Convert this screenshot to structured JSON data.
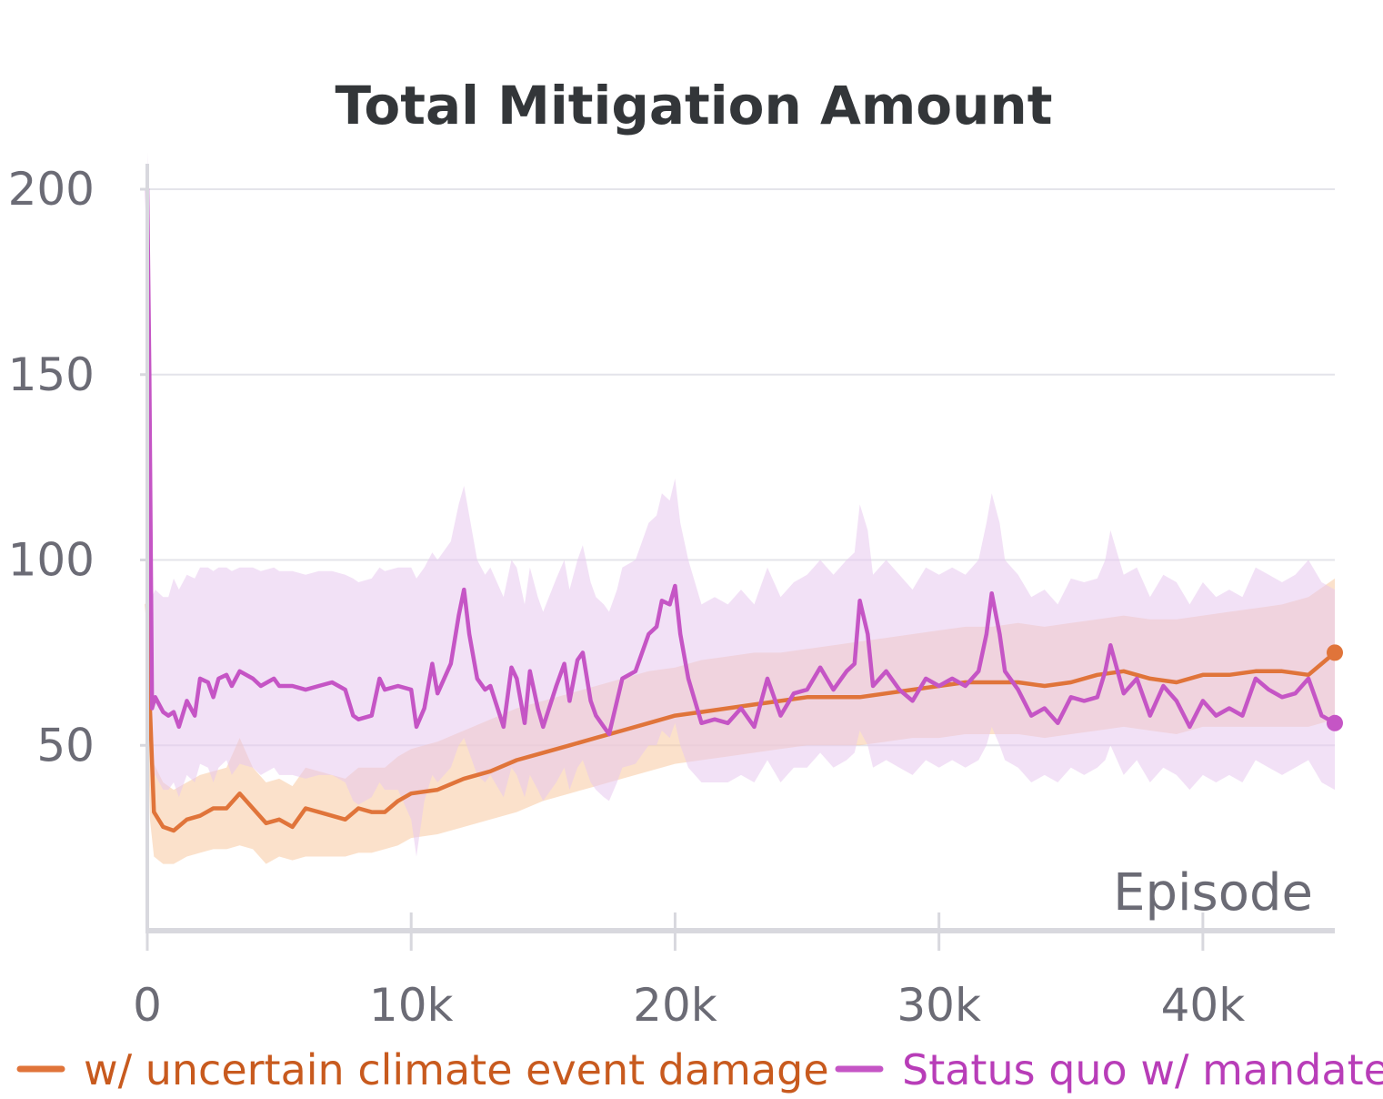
{
  "chart_data": {
    "type": "line",
    "title": "Total Mitigation Amount",
    "xlabel": "Episode",
    "ylabel": "",
    "xlim": [
      0,
      45000
    ],
    "ylim": [
      0,
      200
    ],
    "x_ticks": [
      0,
      10000,
      20000,
      30000,
      40000
    ],
    "x_tick_labels": [
      "0",
      "10k",
      "20k",
      "30k",
      "40k"
    ],
    "y_ticks": [
      50,
      100,
      150,
      200
    ],
    "y_tick_labels": [
      "50",
      "100",
      "150",
      "200"
    ],
    "grid": true,
    "legend_position": "bottom",
    "series": [
      {
        "name": "w/ uncertain climate event damage",
        "color": "#e0743a",
        "text_color": "#c85a1e",
        "band_color": "#f7c9a0",
        "x": [
          0,
          100,
          250,
          600,
          1000,
          1500,
          2000,
          2500,
          3000,
          3500,
          4000,
          4500,
          5000,
          5500,
          6000,
          6500,
          7000,
          7500,
          8000,
          8500,
          9000,
          9500,
          10000,
          11000,
          12000,
          13000,
          14000,
          15000,
          16000,
          17000,
          18000,
          19000,
          20000,
          21000,
          22000,
          23000,
          24000,
          25000,
          26000,
          27000,
          28000,
          29000,
          30000,
          31000,
          32000,
          33000,
          34000,
          35000,
          36000,
          37000,
          38000,
          39000,
          40000,
          41000,
          42000,
          43000,
          44000,
          45000
        ],
        "values": [
          88,
          60,
          32,
          28,
          27,
          30,
          31,
          33,
          33,
          37,
          33,
          29,
          30,
          28,
          33,
          32,
          31,
          30,
          33,
          32,
          32,
          35,
          37,
          38,
          41,
          43,
          46,
          48,
          50,
          52,
          54,
          56,
          58,
          59,
          60,
          61,
          62,
          63,
          63,
          63,
          64,
          65,
          66,
          67,
          67,
          67,
          66,
          67,
          69,
          70,
          68,
          67,
          69,
          69,
          70,
          70,
          69,
          75
        ],
        "band_low": [
          60,
          30,
          20,
          18,
          18,
          20,
          21,
          22,
          22,
          23,
          22,
          18,
          20,
          19,
          20,
          20,
          20,
          20,
          21,
          21,
          22,
          23,
          25,
          26,
          28,
          30,
          32,
          35,
          37,
          39,
          41,
          43,
          45,
          46,
          47,
          48,
          49,
          50,
          50,
          50,
          51,
          52,
          52,
          53,
          53,
          53,
          52,
          53,
          54,
          55,
          54,
          53,
          55,
          55,
          55,
          55,
          55,
          57
        ],
        "band_high": [
          120,
          80,
          45,
          40,
          38,
          40,
          42,
          43,
          44,
          52,
          44,
          40,
          41,
          39,
          44,
          43,
          42,
          41,
          44,
          44,
          44,
          47,
          49,
          51,
          54,
          57,
          60,
          62,
          64,
          66,
          68,
          70,
          71,
          73,
          74,
          75,
          75,
          76,
          77,
          78,
          79,
          80,
          81,
          82,
          82,
          83,
          82,
          83,
          84,
          85,
          84,
          84,
          85,
          86,
          87,
          88,
          90,
          95
        ]
      },
      {
        "name": "Status quo w/ mandate",
        "color": "#c555c5",
        "text_color": "#b83db8",
        "band_color": "#e8c9ee",
        "x": [
          0,
          80,
          180,
          300,
          600,
          800,
          1000,
          1200,
          1500,
          1800,
          2000,
          2300,
          2500,
          2700,
          3000,
          3200,
          3500,
          4000,
          4300,
          4800,
          5000,
          5500,
          6000,
          6500,
          7000,
          7500,
          7800,
          8000,
          8500,
          8800,
          9000,
          9500,
          10000,
          10200,
          10500,
          10800,
          11000,
          11500,
          11800,
          12000,
          12200,
          12500,
          12800,
          13000,
          13500,
          13800,
          14000,
          14300,
          14500,
          14800,
          15000,
          15500,
          15800,
          16000,
          16300,
          16500,
          16800,
          17000,
          17300,
          17500,
          17800,
          18000,
          18500,
          19000,
          19300,
          19500,
          19800,
          20000,
          20200,
          20500,
          21000,
          21500,
          22000,
          22500,
          23000,
          23500,
          24000,
          24500,
          25000,
          25500,
          26000,
          26500,
          26800,
          27000,
          27300,
          27500,
          28000,
          28500,
          29000,
          29500,
          30000,
          30500,
          31000,
          31500,
          31800,
          32000,
          32300,
          32500,
          33000,
          33500,
          34000,
          34500,
          35000,
          35500,
          36000,
          36300,
          36500,
          37000,
          37500,
          38000,
          38500,
          39000,
          39500,
          40000,
          40500,
          41000,
          41500,
          42000,
          42500,
          43000,
          43500,
          44000,
          44500,
          45000
        ],
        "values": [
          200,
          150,
          60,
          63,
          59,
          58,
          59,
          55,
          62,
          58,
          68,
          67,
          63,
          68,
          69,
          66,
          70,
          68,
          66,
          68,
          66,
          66,
          65,
          66,
          67,
          65,
          58,
          57,
          58,
          68,
          65,
          66,
          65,
          55,
          60,
          72,
          64,
          72,
          85,
          92,
          80,
          68,
          65,
          66,
          55,
          71,
          68,
          56,
          70,
          60,
          55,
          66,
          72,
          62,
          73,
          75,
          62,
          58,
          55,
          53,
          62,
          68,
          70,
          80,
          82,
          89,
          88,
          93,
          80,
          68,
          56,
          57,
          56,
          60,
          55,
          68,
          58,
          64,
          65,
          71,
          65,
          70,
          72,
          89,
          80,
          66,
          70,
          65,
          62,
          68,
          66,
          68,
          66,
          70,
          80,
          91,
          80,
          70,
          65,
          58,
          60,
          56,
          63,
          62,
          63,
          70,
          77,
          64,
          68,
          58,
          66,
          62,
          55,
          62,
          58,
          60,
          58,
          68,
          65,
          63,
          64,
          68,
          58,
          56
        ],
        "band_low": [
          190,
          120,
          40,
          42,
          38,
          38,
          40,
          36,
          42,
          40,
          45,
          44,
          40,
          44,
          46,
          42,
          45,
          44,
          42,
          44,
          42,
          42,
          41,
          42,
          42,
          40,
          35,
          34,
          36,
          40,
          38,
          38,
          30,
          20,
          35,
          42,
          40,
          44,
          50,
          52,
          48,
          42,
          40,
          42,
          36,
          44,
          42,
          36,
          42,
          38,
          35,
          40,
          44,
          38,
          44,
          46,
          40,
          38,
          36,
          35,
          40,
          44,
          45,
          50,
          50,
          54,
          52,
          56,
          50,
          44,
          40,
          40,
          40,
          42,
          40,
          46,
          40,
          44,
          44,
          48,
          44,
          46,
          48,
          54,
          50,
          44,
          46,
          44,
          42,
          46,
          44,
          46,
          44,
          46,
          50,
          55,
          50,
          46,
          44,
          40,
          42,
          40,
          44,
          42,
          44,
          46,
          50,
          42,
          46,
          40,
          44,
          42,
          38,
          42,
          40,
          42,
          40,
          46,
          44,
          42,
          44,
          46,
          40,
          38
        ],
        "band_high": [
          210,
          190,
          90,
          92,
          90,
          90,
          95,
          92,
          96,
          95,
          98,
          98,
          97,
          98,
          98,
          97,
          98,
          98,
          97,
          98,
          97,
          97,
          96,
          97,
          97,
          96,
          95,
          94,
          95,
          98,
          97,
          98,
          98,
          95,
          98,
          102,
          100,
          105,
          115,
          120,
          112,
          100,
          96,
          98,
          90,
          100,
          98,
          88,
          98,
          90,
          86,
          95,
          100,
          92,
          100,
          104,
          94,
          90,
          88,
          86,
          92,
          98,
          100,
          110,
          112,
          118,
          116,
          122,
          110,
          100,
          88,
          90,
          88,
          92,
          88,
          98,
          90,
          94,
          96,
          100,
          96,
          100,
          102,
          115,
          108,
          96,
          100,
          96,
          92,
          98,
          96,
          98,
          96,
          100,
          110,
          118,
          110,
          100,
          96,
          90,
          92,
          88,
          95,
          94,
          95,
          100,
          108,
          96,
          98,
          90,
          96,
          94,
          88,
          94,
          90,
          92,
          90,
          98,
          96,
          94,
          96,
          100,
          94,
          92
        ]
      }
    ]
  }
}
